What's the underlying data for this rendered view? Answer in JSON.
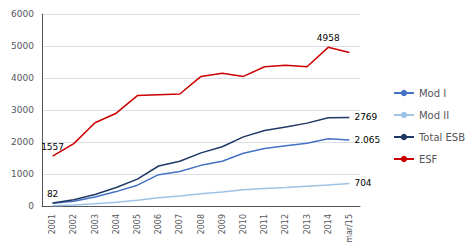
{
  "chart_data": {
    "type": "line",
    "categories": [
      "2001",
      "2002",
      "2003",
      "2004",
      "2005",
      "2006",
      "2007",
      "2008",
      "2009",
      "2010",
      "2011",
      "2012",
      "2013",
      "2014",
      "mar/15"
    ],
    "series": [
      {
        "name": "Mod I",
        "color": "#4472C4",
        "values": [
          82,
          150,
          280,
          450,
          650,
          980,
          1080,
          1270,
          1400,
          1650,
          1800,
          1880,
          1960,
          2100,
          2065
        ]
      },
      {
        "name": "Mod II",
        "color": "#9DC3E6",
        "values": [
          8,
          30,
          70,
          120,
          180,
          260,
          310,
          380,
          440,
          510,
          550,
          580,
          620,
          660,
          704
        ]
      },
      {
        "name": "Total ESB",
        "color": "#1F3864",
        "values": [
          95,
          195,
          360,
          580,
          840,
          1250,
          1400,
          1660,
          1850,
          2160,
          2360,
          2470,
          2590,
          2760,
          2769
        ]
      },
      {
        "name": "ESF",
        "color": "#CC0000",
        "values": [
          1557,
          1950,
          2600,
          2900,
          3450,
          3480,
          3500,
          4050,
          4150,
          4050,
          4350,
          4400,
          4350,
          4958,
          4800
        ]
      }
    ],
    "annotations": [
      {
        "text": "82",
        "series": "Mod I",
        "x": "2001",
        "value": 82
      },
      {
        "text": "1557",
        "series": "ESF",
        "x": "2001",
        "value": 1557
      },
      {
        "text": "4958",
        "series": "ESF",
        "x": "2014",
        "value": 4958
      },
      {
        "text": "2769",
        "series": "Total ESB",
        "x": "mar/15",
        "value": 2769
      },
      {
        "text": "2.065",
        "series": "Mod I",
        "x": "mar/15",
        "value": 2065
      },
      {
        "text": "704",
        "series": "Mod II",
        "x": "mar/15",
        "value": 704
      }
    ],
    "ylim": [
      0,
      6000
    ],
    "yticks": [
      0,
      1000,
      2000,
      3000,
      4000,
      5000,
      6000
    ],
    "grid": true,
    "legend": "right"
  }
}
